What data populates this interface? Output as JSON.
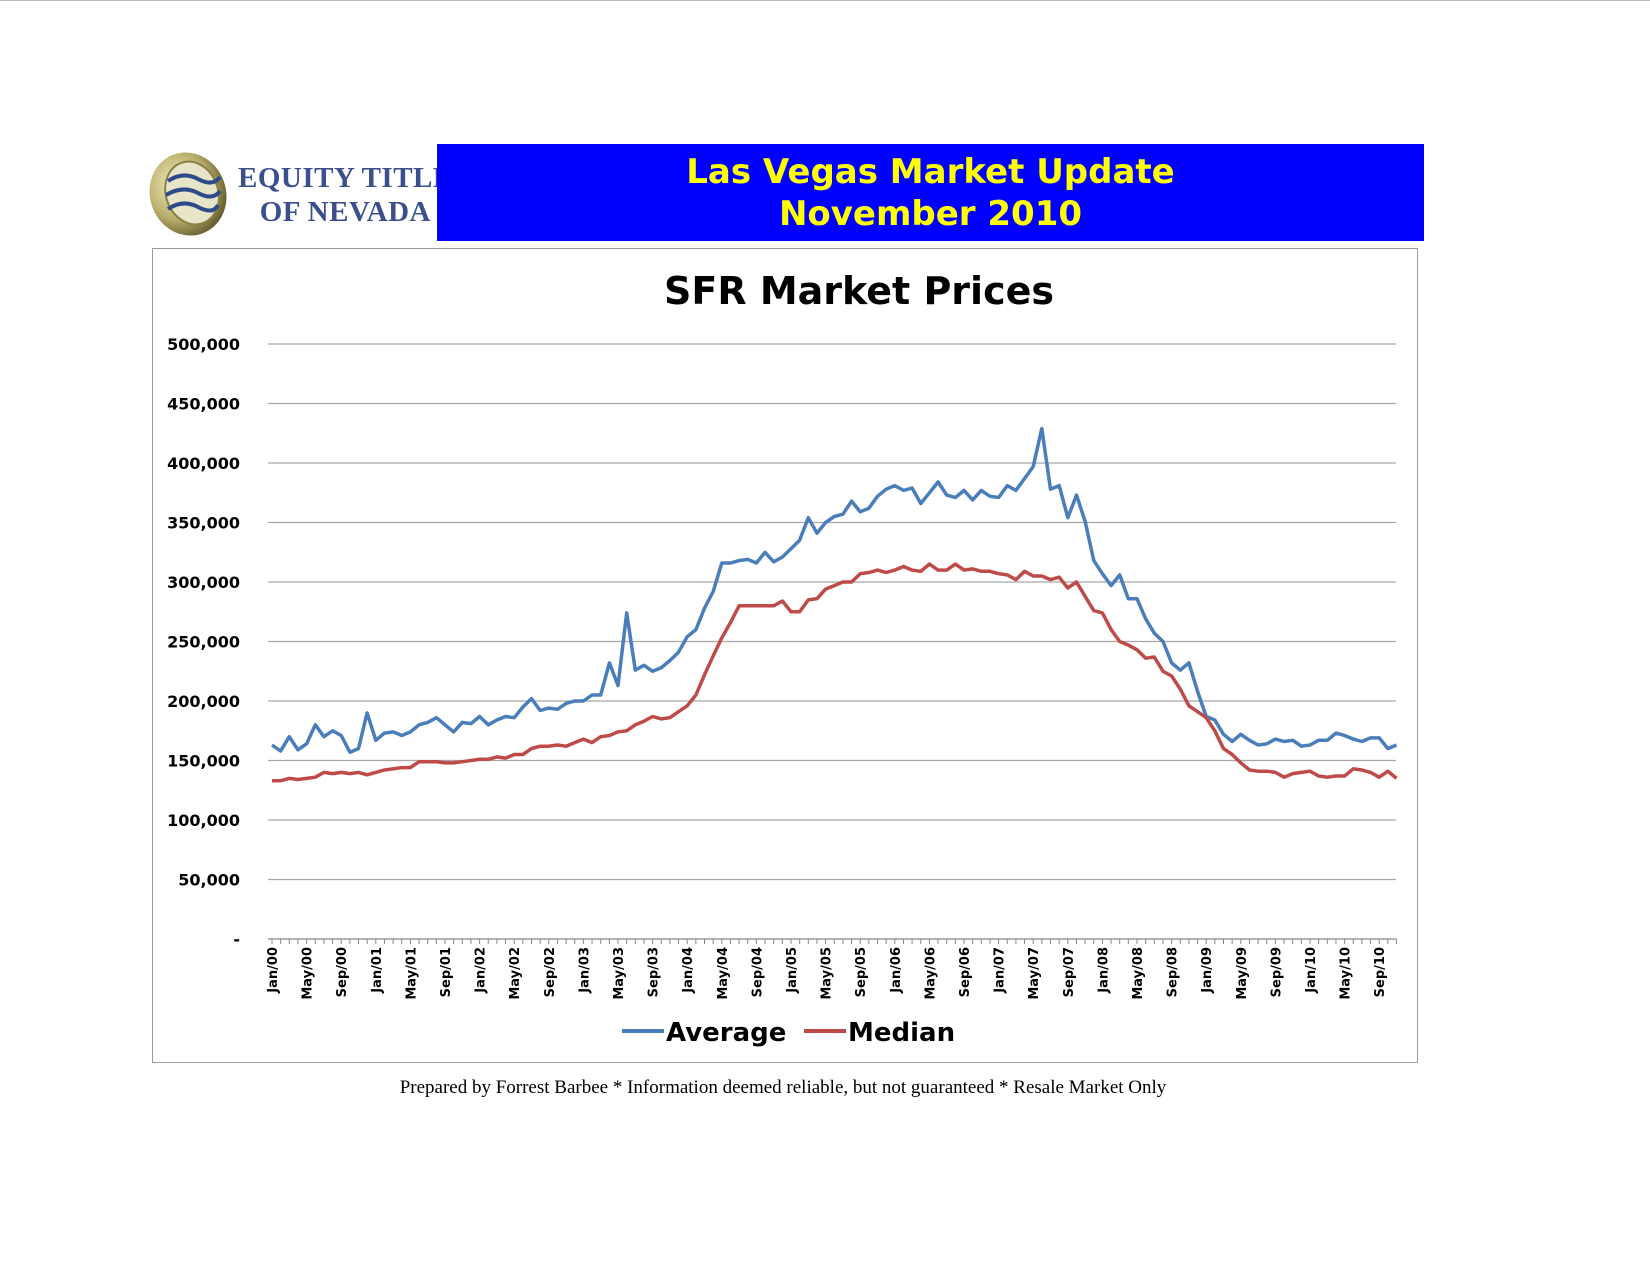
{
  "header": {
    "logo_text_line1": "EQUITY TITLE",
    "logo_text_line2": "OF NEVADA",
    "title_line1": "Las Vegas Market Update",
    "title_line2": "November 2010",
    "banner_color": "#0000FF",
    "title_color": "#FFFF00"
  },
  "footer": {
    "text": "Prepared by Forrest Barbee * Information deemed reliable, but not guaranteed * Resale Market Only"
  },
  "chart_data": {
    "type": "line",
    "title": "SFR Market Prices",
    "xlabel": "",
    "ylabel": "",
    "ylim": [
      0,
      500000
    ],
    "yticks": [
      0,
      50000,
      100000,
      150000,
      200000,
      250000,
      300000,
      350000,
      400000,
      450000,
      500000
    ],
    "ytick_labels": [
      "-",
      "50,000",
      "100,000",
      "150,000",
      "200,000",
      "250,000",
      "300,000",
      "350,000",
      "400,000",
      "450,000",
      "500,000"
    ],
    "x_start": "Jan/00",
    "x_end": "Nov/10",
    "x_tick_labels": [
      "Jan/00",
      "May/00",
      "Sep/00",
      "Jan/01",
      "May/01",
      "Sep/01",
      "Jan/02",
      "May/02",
      "Sep/02",
      "Jan/03",
      "May/03",
      "Sep/03",
      "Jan/04",
      "May/04",
      "Sep/04",
      "Jan/05",
      "May/05",
      "Sep/05",
      "Jan/06",
      "May/06",
      "Sep/06",
      "Jan/07",
      "May/07",
      "Sep/07",
      "Jan/08",
      "May/08",
      "Sep/08",
      "Jan/09",
      "May/09",
      "Sep/09",
      "Jan/10",
      "May/10",
      "Sep/10"
    ],
    "grid": true,
    "legend_position": "bottom",
    "series": [
      {
        "name": "Average",
        "color": "#4a7ebb",
        "values": [
          163000,
          158000,
          170000,
          159000,
          164000,
          180000,
          170000,
          175000,
          171000,
          157000,
          160000,
          190000,
          167000,
          173000,
          174000,
          171000,
          174000,
          180000,
          182000,
          186000,
          180000,
          174000,
          182000,
          181000,
          187000,
          180000,
          184000,
          187000,
          186000,
          195000,
          202000,
          192000,
          194000,
          193000,
          198000,
          200000,
          200000,
          205000,
          205000,
          232000,
          213000,
          274000,
          226000,
          230000,
          225000,
          228000,
          234000,
          241000,
          254000,
          260000,
          278000,
          292000,
          316000,
          316000,
          318000,
          319000,
          316000,
          325000,
          317000,
          321000,
          328000,
          335000,
          354000,
          341000,
          350000,
          355000,
          357000,
          368000,
          359000,
          362000,
          372000,
          378000,
          381000,
          377000,
          379000,
          366000,
          375000,
          384000,
          373000,
          371000,
          377000,
          369000,
          377000,
          372000,
          371000,
          381000,
          377000,
          387000,
          397000,
          429000,
          378000,
          381000,
          354000,
          373000,
          351000,
          318000,
          307000,
          297000,
          306000,
          286000,
          286000,
          269000,
          257000,
          250000,
          232000,
          226000,
          232000,
          208000,
          187000,
          184000,
          172000,
          166000,
          172000,
          167000,
          163000,
          164000,
          168000,
          166000,
          167000,
          162000,
          163000,
          167000,
          167000,
          173000,
          171000,
          168000,
          166000,
          169000,
          169000,
          160000,
          163000
        ]
      },
      {
        "name": "Median",
        "color": "#be4b48",
        "values": [
          133000,
          133000,
          135000,
          134000,
          135000,
          136000,
          140000,
          139000,
          140000,
          139000,
          140000,
          138000,
          140000,
          142000,
          143000,
          144000,
          144000,
          149000,
          149000,
          149000,
          148000,
          148000,
          149000,
          150000,
          151000,
          151000,
          153000,
          152000,
          155000,
          155000,
          160000,
          162000,
          162000,
          163000,
          162000,
          165000,
          168000,
          165000,
          170000,
          171000,
          174000,
          175000,
          180000,
          183000,
          187000,
          185000,
          186000,
          191000,
          196000,
          205000,
          222000,
          238000,
          253000,
          266000,
          280000,
          280000,
          280000,
          280000,
          280000,
          284000,
          275000,
          275000,
          285000,
          286000,
          294000,
          297000,
          300000,
          300000,
          307000,
          308000,
          310000,
          308000,
          310000,
          313000,
          310000,
          309000,
          315000,
          310000,
          310000,
          315000,
          310000,
          311000,
          309000,
          309000,
          307000,
          306000,
          302000,
          309000,
          305000,
          305000,
          302000,
          304000,
          295000,
          300000,
          288000,
          276000,
          274000,
          260000,
          250000,
          247000,
          243000,
          236000,
          237000,
          225000,
          221000,
          210000,
          196000,
          191000,
          186000,
          175000,
          160000,
          155000,
          148000,
          142000,
          141000,
          141000,
          140000,
          136000,
          139000,
          140000,
          141000,
          137000,
          136000,
          137000,
          137000,
          143000,
          142000,
          140000,
          136000,
          141000,
          135000
        ]
      }
    ]
  }
}
